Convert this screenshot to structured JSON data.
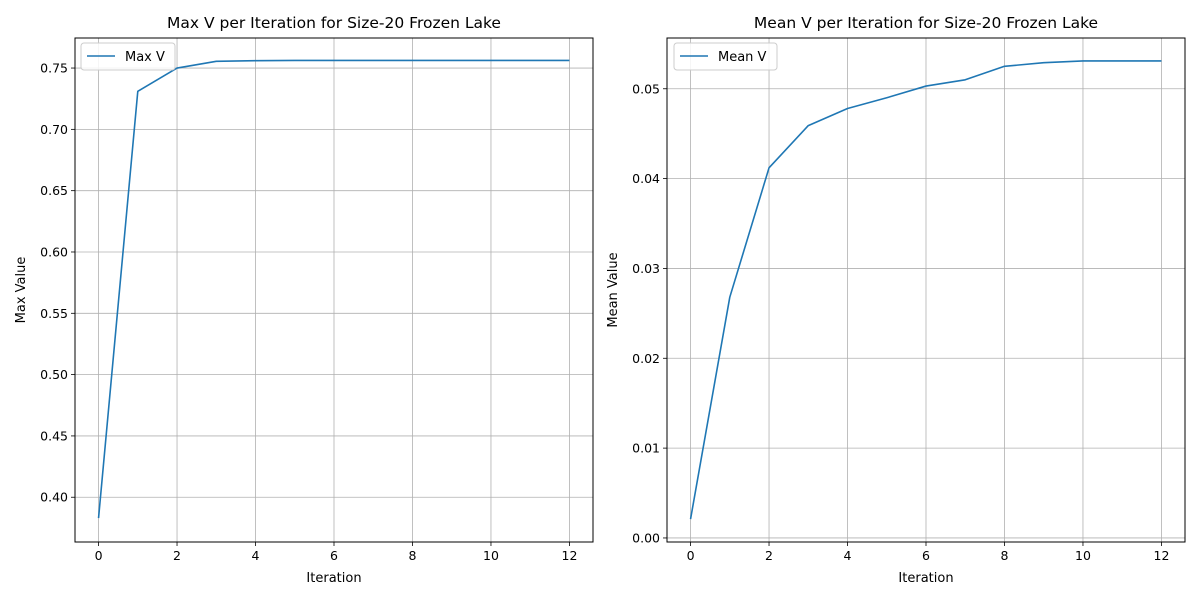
{
  "chart_data": [
    {
      "type": "line",
      "title": "Max V per Iteration for Size-20 Frozen Lake",
      "xlabel": "Iteration",
      "ylabel": "Max Value",
      "xlim": [
        -0.6,
        12.6
      ],
      "ylim": [
        0.3635,
        0.7745
      ],
      "xticks": [
        0,
        2,
        4,
        6,
        8,
        10,
        12
      ],
      "xtick_labels": [
        "0",
        "2",
        "4",
        "6",
        "8",
        "10",
        "12"
      ],
      "yticks": [
        0.4,
        0.45,
        0.5,
        0.55,
        0.6,
        0.65,
        0.7,
        0.75
      ],
      "ytick_labels": [
        "0.40",
        "0.45",
        "0.50",
        "0.55",
        "0.60",
        "0.65",
        "0.70",
        "0.75"
      ],
      "grid": true,
      "legend_position": "top-left",
      "series": [
        {
          "name": "Max V",
          "color": "#1f77b4",
          "x": [
            0,
            1,
            2,
            3,
            4,
            5,
            6,
            7,
            8,
            9,
            10,
            11,
            12
          ],
          "y": [
            0.383,
            0.731,
            0.75,
            0.7555,
            0.756,
            0.7562,
            0.7562,
            0.7562,
            0.7562,
            0.7562,
            0.7562,
            0.7562,
            0.7562
          ]
        }
      ]
    },
    {
      "type": "line",
      "title": "Mean V per Iteration for Size-20 Frozen Lake",
      "xlabel": "Iteration",
      "ylabel": "Mean Value",
      "xlim": [
        -0.6,
        12.6
      ],
      "ylim": [
        -0.00045,
        0.05565
      ],
      "xticks": [
        0,
        2,
        4,
        6,
        8,
        10,
        12
      ],
      "xtick_labels": [
        "0",
        "2",
        "4",
        "6",
        "8",
        "10",
        "12"
      ],
      "yticks": [
        0.0,
        0.01,
        0.02,
        0.03,
        0.04,
        0.05
      ],
      "ytick_labels": [
        "0.00",
        "0.01",
        "0.02",
        "0.03",
        "0.04",
        "0.05"
      ],
      "grid": true,
      "legend_position": "top-left",
      "series": [
        {
          "name": "Mean V",
          "color": "#1f77b4",
          "x": [
            0,
            1,
            2,
            3,
            4,
            5,
            6,
            7,
            8,
            9,
            10,
            11,
            12
          ],
          "y": [
            0.0021,
            0.0268,
            0.0412,
            0.0459,
            0.0478,
            0.049,
            0.0503,
            0.051,
            0.0525,
            0.0529,
            0.0531,
            0.0531,
            0.0531
          ]
        }
      ]
    }
  ]
}
